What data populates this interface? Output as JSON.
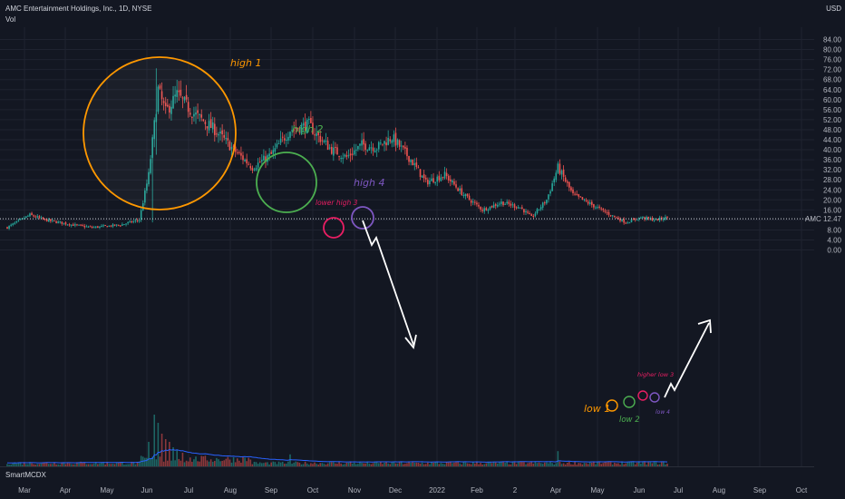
{
  "title": "AMC Entertainment Holdings, Inc., 1D, NYSE",
  "volume_label": "Vol",
  "currency": "USD",
  "indicator_label": "SmartMCDX",
  "colors": {
    "bg": "#131722",
    "up": "#26a69a",
    "down": "#ef5350",
    "orange": "#ff9800",
    "green": "#4caf50",
    "purple": "#7e57c2",
    "pink": "#e91e63",
    "arrow": "#ffffff",
    "vol_ma": "#2962ff"
  },
  "chart_data": {
    "type": "candlestick",
    "symbol": "AMC",
    "last_price": "12.47",
    "y_ticks": [
      "84.00",
      "80.00",
      "76.00",
      "72.00",
      "68.00",
      "64.00",
      "60.00",
      "56.00",
      "52.00",
      "48.00",
      "44.00",
      "40.00",
      "36.00",
      "32.00",
      "28.00",
      "24.00",
      "20.00",
      "16.00",
      "12.00",
      "8.00",
      "4.00",
      "0.00"
    ],
    "ylim": [
      0,
      86
    ],
    "x_ticks": [
      "Mar",
      "Apr",
      "May",
      "Jun",
      "Jul",
      "Aug",
      "Sep",
      "Oct",
      "Nov",
      "Dec",
      "2022",
      "Feb",
      "2",
      "Apr",
      "May",
      "Jun",
      "Jul",
      "Aug",
      "Sep",
      "Oct"
    ],
    "anchors": [
      [
        0,
        9
      ],
      [
        12,
        14
      ],
      [
        20,
        12
      ],
      [
        35,
        10
      ],
      [
        45,
        9
      ],
      [
        60,
        10
      ],
      [
        70,
        12
      ],
      [
        75,
        30
      ],
      [
        78,
        50
      ],
      [
        80,
        64
      ],
      [
        84,
        55
      ],
      [
        90,
        62
      ],
      [
        98,
        55
      ],
      [
        110,
        48
      ],
      [
        120,
        40
      ],
      [
        130,
        33
      ],
      [
        140,
        38
      ],
      [
        150,
        48
      ],
      [
        160,
        50
      ],
      [
        164,
        46
      ],
      [
        172,
        40
      ],
      [
        180,
        37
      ],
      [
        188,
        42
      ],
      [
        196,
        41
      ],
      [
        204,
        45
      ],
      [
        214,
        36
      ],
      [
        222,
        27
      ],
      [
        232,
        30
      ],
      [
        242,
        22
      ],
      [
        252,
        16
      ],
      [
        262,
        19
      ],
      [
        272,
        17
      ],
      [
        278,
        13
      ],
      [
        286,
        20
      ],
      [
        292,
        33
      ],
      [
        300,
        22
      ],
      [
        310,
        18
      ],
      [
        320,
        14
      ],
      [
        328,
        11
      ],
      [
        336,
        13
      ],
      [
        344,
        12
      ],
      [
        350,
        13
      ]
    ],
    "volume_spikes": [
      [
        75,
        0.45
      ],
      [
        78,
        0.95
      ],
      [
        80,
        0.8
      ],
      [
        82,
        0.6
      ],
      [
        84,
        0.5
      ],
      [
        86,
        0.45
      ],
      [
        88,
        0.35
      ],
      [
        90,
        0.3
      ],
      [
        93,
        0.25
      ],
      [
        150,
        0.22
      ],
      [
        292,
        0.28
      ]
    ],
    "annotations": [
      {
        "type": "circle",
        "label": "high 1",
        "color": "orange"
      },
      {
        "type": "circle",
        "label": "high 2",
        "color": "green"
      },
      {
        "type": "circle",
        "label": "lower high 3",
        "color": "pink"
      },
      {
        "type": "circle",
        "label": "high 4",
        "color": "purple"
      },
      {
        "type": "circle",
        "label": "low 1",
        "color": "orange"
      },
      {
        "type": "circle",
        "label": "low 2",
        "color": "green"
      },
      {
        "type": "circle",
        "label": "higher low 3",
        "color": "pink"
      },
      {
        "type": "circle",
        "label": "low 4",
        "color": "purple"
      },
      {
        "type": "arrow",
        "direction": "down"
      },
      {
        "type": "arrow",
        "direction": "up"
      }
    ]
  }
}
